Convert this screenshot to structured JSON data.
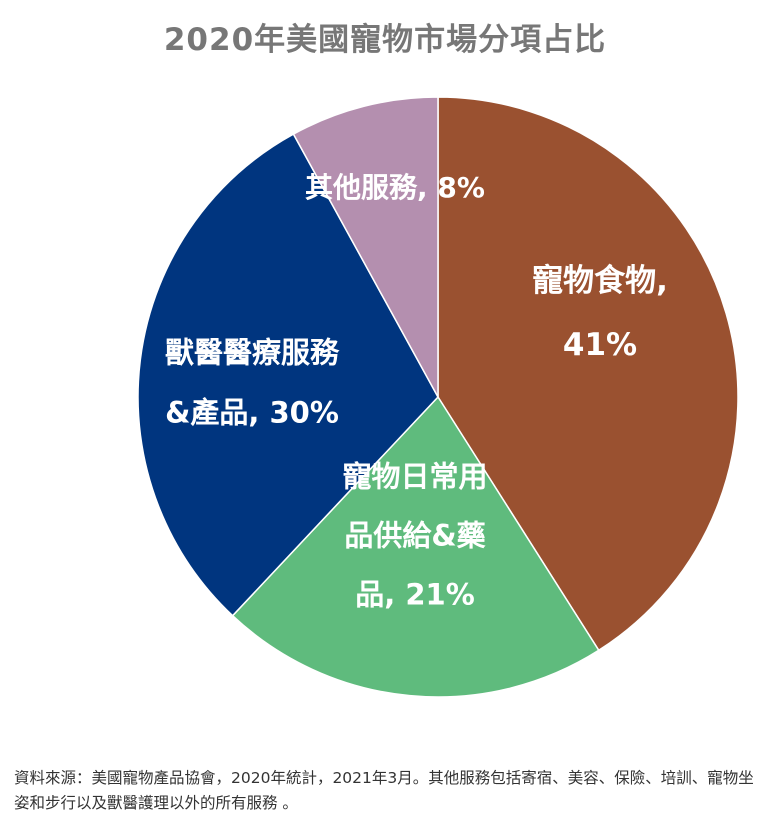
{
  "chart_data": {
    "type": "pie",
    "title": "2020年美國寵物市場分項占比",
    "slices": [
      {
        "label_lines": [
          "寵物食物,",
          "41%"
        ],
        "value": 41,
        "color": "#9a5130"
      },
      {
        "label_lines": [
          "寵物日常用",
          "品供給&藥",
          "品, 21%"
        ],
        "value": 21,
        "color": "#5fbb7d"
      },
      {
        "label_lines": [
          "獸醫醫療服務",
          "&產品, 30%"
        ],
        "value": 30,
        "color": "#00357f"
      },
      {
        "label_lines": [
          "其他服務, 8%"
        ],
        "value": 8,
        "color": "#b48faf"
      }
    ]
  },
  "footnote": "資料來源：美國寵物產品協會，2020年統計，2021年3月。其他服務包括寄宿、美容、保險、培訓、寵物坐姿和步行以及獸醫護理以外的所有服務 。"
}
